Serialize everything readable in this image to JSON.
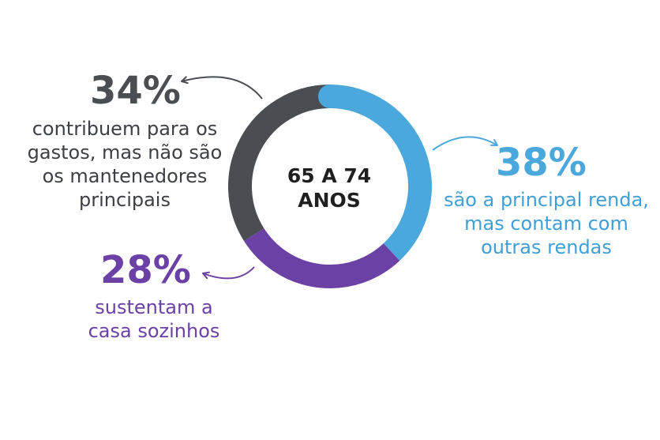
{
  "chart_data": {
    "type": "pie",
    "center_label": [
      "65 A 74",
      "ANOS"
    ],
    "slices": [
      {
        "value": 38,
        "label": "38%",
        "description": [
          "são a principal renda,",
          "mas contam com",
          "outras rendas"
        ],
        "color": "#4aa8dc"
      },
      {
        "value": 28,
        "label": "28%",
        "description": [
          "sustentam a",
          "casa sozinhos"
        ],
        "color": "#6c41a6"
      },
      {
        "value": 34,
        "label": "34%",
        "description": [
          "contribuem para os",
          "gastos, mas não são",
          "os mantenedores",
          "principais"
        ],
        "color": "#4a4d52"
      }
    ]
  }
}
